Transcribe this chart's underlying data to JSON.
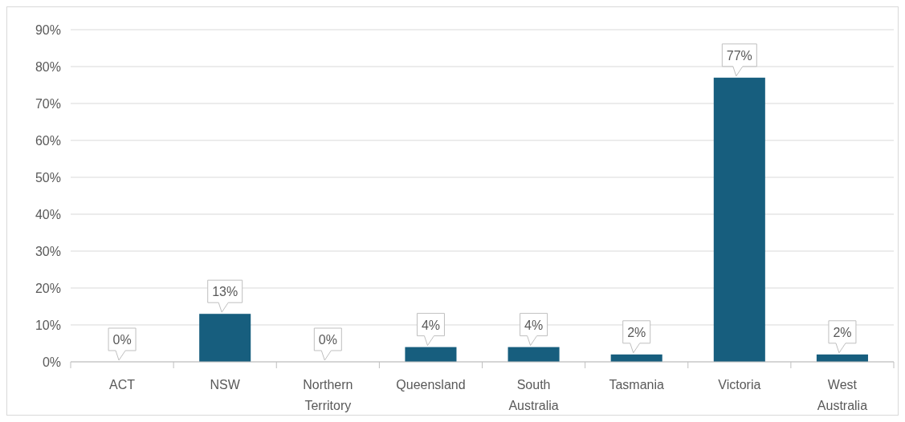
{
  "chart_data": {
    "type": "bar",
    "categories": [
      "ACT",
      "NSW",
      "Northern Territory",
      "Queensland",
      "South Australia",
      "Tasmania",
      "Victoria",
      "West Australia"
    ],
    "values": [
      0,
      13,
      0,
      4,
      4,
      2,
      77,
      2
    ],
    "color": "#175e7e",
    "ylim": [
      0,
      90
    ],
    "yticks": [
      {
        "value": 0,
        "label": "0%"
      },
      {
        "value": 10,
        "label": "10%"
      },
      {
        "value": 20,
        "label": "20%"
      },
      {
        "value": 30,
        "label": "30%"
      },
      {
        "value": 40,
        "label": "40%"
      },
      {
        "value": 50,
        "label": "50%"
      },
      {
        "value": 60,
        "label": "60%"
      },
      {
        "value": 70,
        "label": "70%"
      },
      {
        "value": 80,
        "label": "80%"
      },
      {
        "value": 90,
        "label": "90%"
      }
    ],
    "value_labels": [
      "0%",
      "13%",
      "0%",
      "4%",
      "4%",
      "2%",
      "77%",
      "2%"
    ],
    "grid": "y"
  }
}
